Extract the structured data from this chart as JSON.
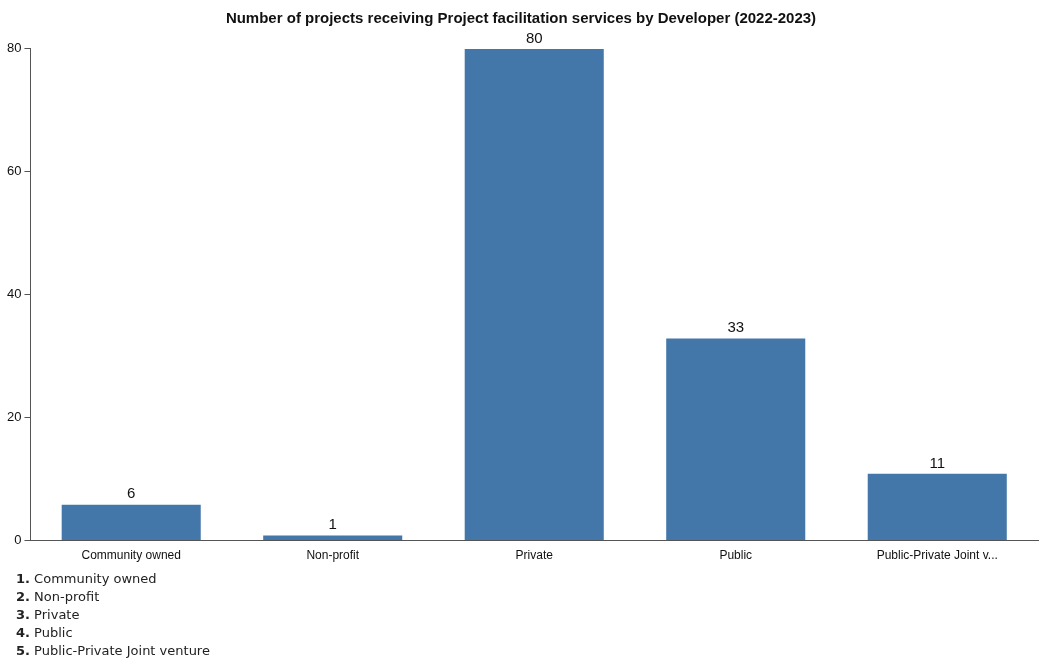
{
  "chart_data": {
    "type": "bar",
    "title": "Number of projects receiving Project facilitation services by Developer (2022-2023)",
    "categories": [
      "Community owned",
      "Non-profit",
      "Private",
      "Public",
      "Public-Private Joint v..."
    ],
    "values": [
      6,
      1,
      80,
      33,
      11
    ],
    "color": "#4377aa",
    "ylim": [
      0,
      80
    ],
    "yticks": [
      0,
      20,
      40,
      60,
      80
    ],
    "grid": false,
    "legend": false,
    "data_labels": true,
    "annotations": [
      "1. Community owned",
      "2. Non-profit",
      "3. Private",
      "4. Public",
      "5. Public-Private Joint venture"
    ]
  }
}
